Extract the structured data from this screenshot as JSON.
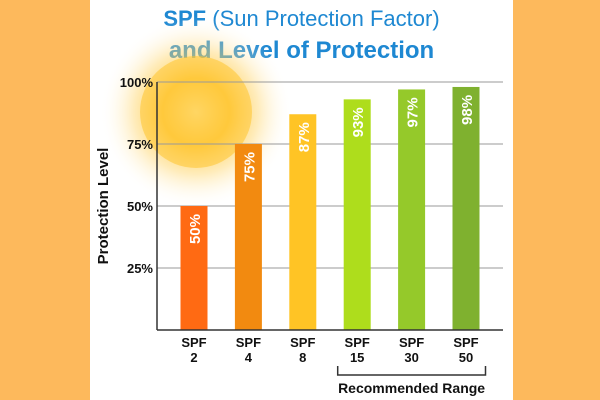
{
  "title": {
    "line1_bold": "SPF",
    "line1_rest": " (Sun Protection Factor)",
    "line2": "and Level of Protection"
  },
  "chart_data": {
    "type": "bar",
    "title": "SPF (Sun Protection Factor) and Level of Protection",
    "xlabel": "",
    "ylabel": "Protection Level",
    "ylim": [
      0,
      100
    ],
    "yticks": [
      "25%",
      "50%",
      "75%",
      "100%"
    ],
    "ytick_values": [
      25,
      50,
      75,
      100
    ],
    "grid": true,
    "categories": [
      {
        "top": "SPF",
        "bottom": "2"
      },
      {
        "top": "SPF",
        "bottom": "4"
      },
      {
        "top": "SPF",
        "bottom": "8"
      },
      {
        "top": "SPF",
        "bottom": "15"
      },
      {
        "top": "SPF",
        "bottom": "30"
      },
      {
        "top": "SPF",
        "bottom": "50"
      }
    ],
    "values": [
      50,
      75,
      87,
      93,
      97,
      98
    ],
    "data_labels": [
      "50%",
      "75%",
      "87%",
      "93%",
      "97%",
      "98%"
    ],
    "colors": [
      "#FF6A13",
      "#F28A10",
      "#FFC425",
      "#AEDD1C",
      "#95C92A",
      "#7FB12F"
    ],
    "annotation": "Recommended Range",
    "annotation_span": [
      "15",
      "50"
    ]
  },
  "colors": {
    "page_background": "#FDB95C",
    "title": "#1E88D2",
    "sun": "#FFC52E"
  }
}
